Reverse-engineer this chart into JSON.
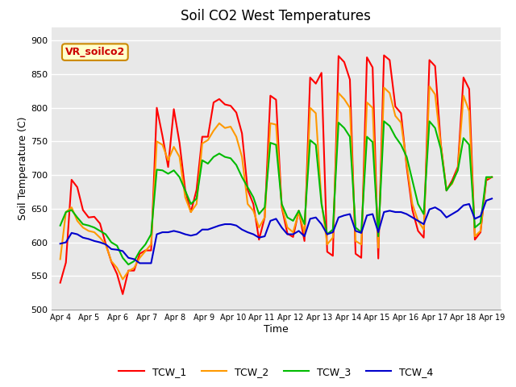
{
  "title": "Soil CO2 West Temperatures",
  "xlabel": "Time",
  "ylabel": "Soil Temperature (C)",
  "ylim": [
    500,
    920
  ],
  "yticks": [
    500,
    550,
    600,
    650,
    700,
    750,
    800,
    850,
    900
  ],
  "annotation_text": "VR_soilco2",
  "bg_color": "#e8e8e8",
  "legend_labels": [
    "TCW_1",
    "TCW_2",
    "TCW_3",
    "TCW_4"
  ],
  "colors": [
    "#ff0000",
    "#ff9900",
    "#00bb00",
    "#0000cc"
  ],
  "line_width": 1.5,
  "xtick_labels": [
    "Apr 4",
    "Apr 5",
    "Apr 6",
    "Apr 7",
    "Apr 8",
    "Apr 9",
    "Apr 10",
    "Apr 11",
    "Apr 12",
    "Apr 13",
    "Apr 14",
    "Apr 15",
    "Apr 16",
    "Apr 17",
    "Apr 18",
    "Apr 19"
  ],
  "TCW_1": [
    540,
    570,
    693,
    682,
    648,
    637,
    638,
    628,
    598,
    571,
    553,
    523,
    558,
    558,
    583,
    588,
    588,
    800,
    758,
    712,
    798,
    748,
    678,
    645,
    678,
    757,
    757,
    808,
    813,
    805,
    803,
    793,
    762,
    678,
    657,
    604,
    637,
    818,
    812,
    652,
    613,
    608,
    647,
    602,
    845,
    836,
    852,
    586,
    580,
    877,
    868,
    842,
    583,
    577,
    875,
    860,
    576,
    878,
    871,
    802,
    792,
    712,
    648,
    617,
    607,
    871,
    862,
    747,
    677,
    692,
    712,
    845,
    828,
    604,
    615,
    692,
    697
  ],
  "TCW_2": [
    575,
    645,
    652,
    632,
    622,
    617,
    615,
    607,
    597,
    572,
    562,
    545,
    557,
    562,
    577,
    587,
    597,
    750,
    745,
    722,
    742,
    727,
    667,
    645,
    657,
    747,
    752,
    766,
    777,
    770,
    772,
    757,
    727,
    657,
    647,
    622,
    637,
    777,
    775,
    654,
    622,
    615,
    645,
    614,
    800,
    792,
    660,
    597,
    607,
    822,
    813,
    800,
    602,
    597,
    808,
    800,
    592,
    830,
    822,
    788,
    778,
    717,
    657,
    632,
    619,
    832,
    820,
    745,
    679,
    687,
    709,
    818,
    795,
    609,
    617,
    695,
    697
  ],
  "TCW_3": [
    625,
    645,
    648,
    637,
    627,
    625,
    622,
    617,
    612,
    600,
    595,
    577,
    567,
    572,
    587,
    597,
    612,
    708,
    707,
    702,
    707,
    697,
    677,
    657,
    665,
    722,
    717,
    727,
    732,
    727,
    725,
    715,
    697,
    682,
    667,
    642,
    652,
    748,
    745,
    657,
    637,
    632,
    647,
    627,
    752,
    745,
    657,
    612,
    619,
    778,
    770,
    757,
    622,
    615,
    757,
    749,
    609,
    780,
    773,
    757,
    745,
    727,
    692,
    657,
    642,
    780,
    770,
    739,
    677,
    689,
    707,
    755,
    745,
    622,
    629,
    697,
    697
  ],
  "TCW_4": [
    598,
    600,
    614,
    612,
    607,
    605,
    602,
    600,
    597,
    590,
    589,
    587,
    577,
    575,
    569,
    569,
    569,
    612,
    615,
    615,
    617,
    615,
    612,
    610,
    612,
    619,
    619,
    622,
    625,
    627,
    627,
    625,
    619,
    615,
    612,
    607,
    609,
    632,
    635,
    622,
    612,
    612,
    617,
    609,
    635,
    637,
    627,
    612,
    615,
    637,
    640,
    642,
    617,
    614,
    640,
    642,
    615,
    645,
    647,
    645,
    645,
    642,
    637,
    632,
    627,
    649,
    652,
    647,
    637,
    642,
    647,
    655,
    657,
    635,
    639,
    662,
    665
  ]
}
